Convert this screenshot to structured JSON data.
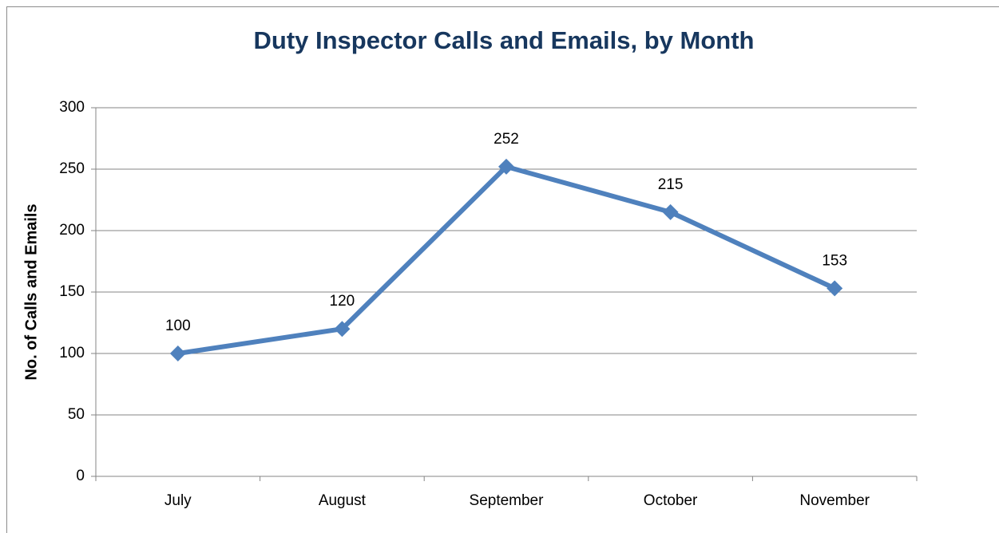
{
  "chart_data": {
    "type": "line",
    "title": "Duty Inspector Calls and Emails, by Month",
    "ylabel": "No. of Calls and Emails",
    "categories": [
      "July",
      "August",
      "September",
      "October",
      "November"
    ],
    "values": [
      100,
      120,
      252,
      215,
      153
    ],
    "color": "#4f81bd",
    "ylim": [
      0,
      300
    ],
    "yticks": [
      0,
      50,
      100,
      150,
      200,
      250,
      300
    ],
    "grid": true
  }
}
